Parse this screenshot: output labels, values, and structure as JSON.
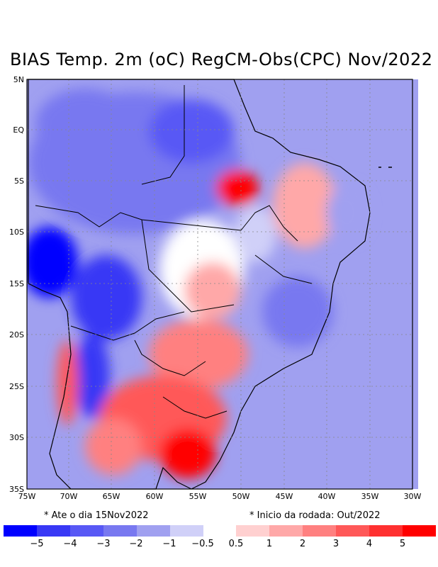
{
  "title": "BIAS Temp. 2m (oC) RegCM-Obs(CPC) Nov/2022",
  "axes": {
    "lat_labels": [
      "5N",
      "EQ",
      "5S",
      "10S",
      "15S",
      "20S",
      "25S",
      "30S",
      "35S"
    ],
    "lon_labels": [
      "75W",
      "70W",
      "65W",
      "60W",
      "55W",
      "50W",
      "45W",
      "40W",
      "35W",
      "30W"
    ]
  },
  "notes": {
    "left": "* Ate o dia 15Nov2022",
    "right": "* Inicio da rodada: Out/2022"
  },
  "colorbar": {
    "colors": [
      "#0000ff",
      "#3838f5",
      "#5858f5",
      "#7878f0",
      "#a0a0f0",
      "#d0d0f8",
      "#ffffff",
      "#ffd0d0",
      "#ffa8a8",
      "#ff8080",
      "#ff5858",
      "#ff3030",
      "#ff0000"
    ],
    "labels": [
      "−5",
      "−4",
      "−3",
      "−2",
      "−1",
      "−0.5",
      "0.5",
      "1",
      "2",
      "3",
      "4",
      "5"
    ]
  },
  "chart_data": {
    "type": "heatmap",
    "title": "BIAS Temp. 2m (oC) RegCM-Obs(CPC) Nov/2022",
    "variable": "2 m temperature bias (RegCM minus CPC observations)",
    "units": "oC",
    "lon_range": [
      -75,
      -30
    ],
    "lat_range": [
      -35,
      5
    ],
    "levels": [
      -5,
      -4,
      -3,
      -2,
      -1,
      -0.5,
      0.5,
      1,
      2,
      3,
      4,
      5
    ]
  }
}
